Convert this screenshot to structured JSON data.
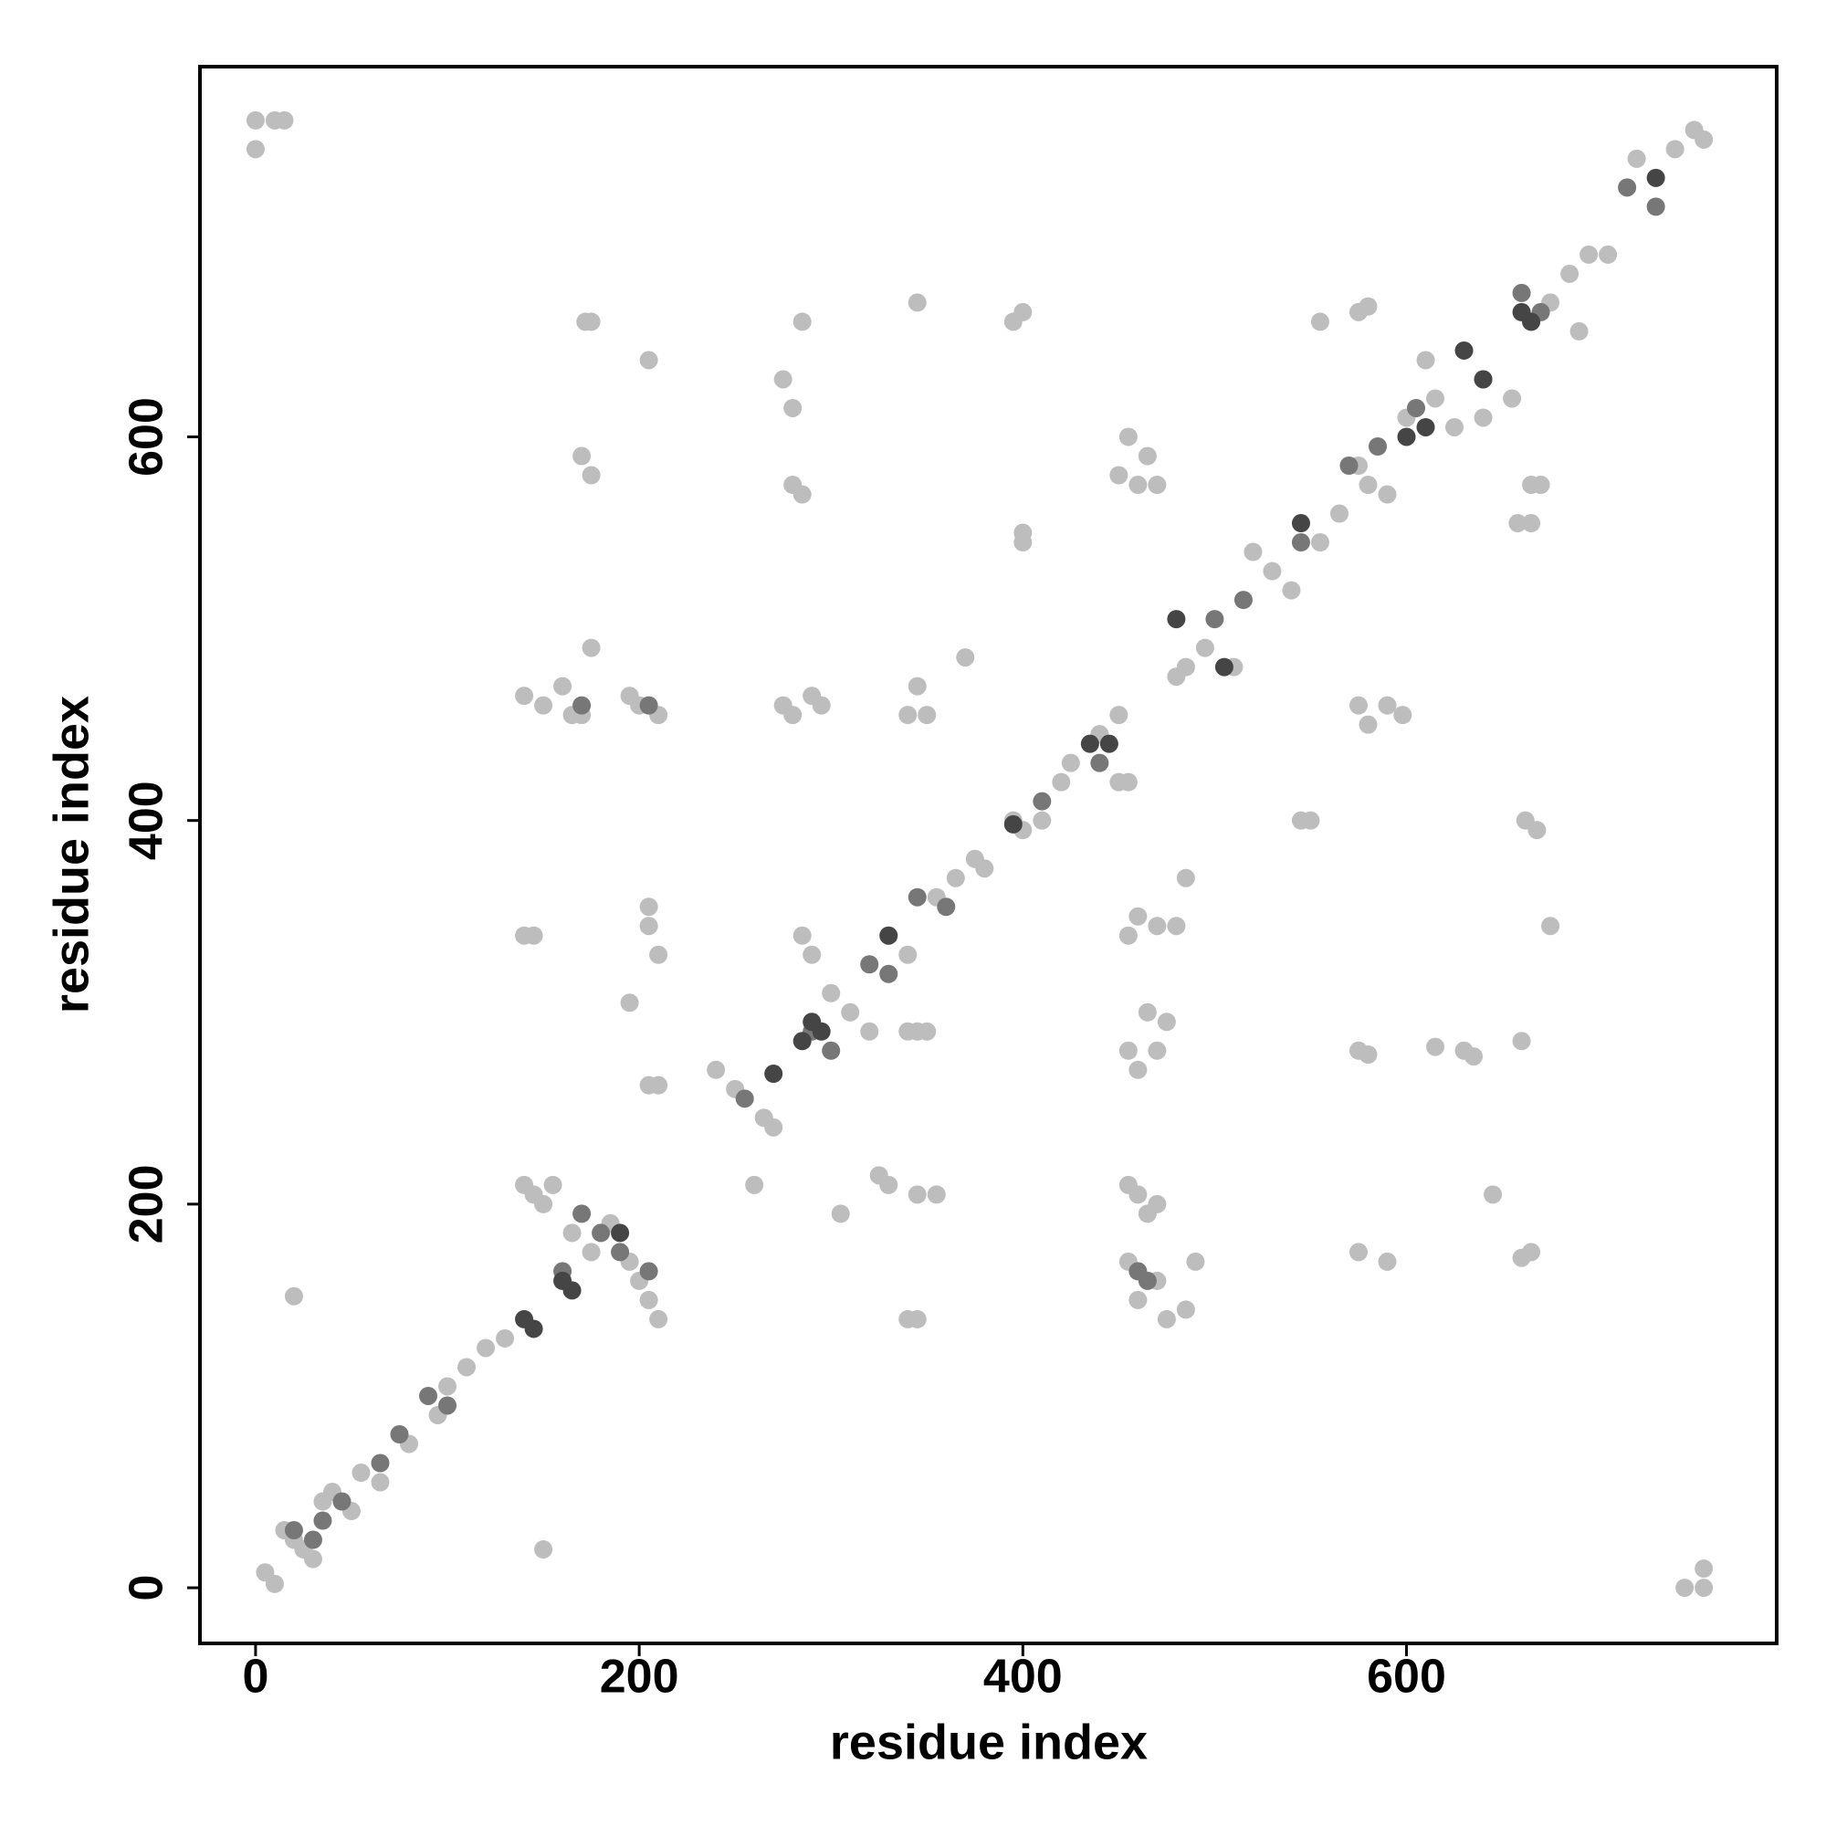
{
  "chart_data": {
    "type": "scatter",
    "xlabel": "residue index",
    "ylabel": "residue index",
    "xlim": [
      -29,
      793
    ],
    "ylim": [
      -29,
      793
    ],
    "xticks": [
      0,
      200,
      400,
      600
    ],
    "yticks": [
      0,
      200,
      400,
      600
    ],
    "series": [
      {
        "color": "#bdbdbd",
        "x": [
          5,
          10,
          15,
          20,
          25,
          30,
          35,
          40,
          50,
          55,
          65,
          80,
          95,
          100,
          110,
          120,
          130,
          140,
          145,
          150,
          155,
          165,
          175,
          185,
          195,
          200,
          205,
          210,
          240,
          250,
          265,
          270,
          285,
          290,
          300,
          310,
          320,
          330,
          340,
          350,
          355,
          365,
          375,
          380,
          395,
          400,
          410,
          420,
          425,
          440,
          450,
          480,
          485,
          495,
          510,
          520,
          530,
          540,
          555,
          565,
          575,
          580,
          590,
          600,
          610,
          615,
          625,
          640,
          655,
          665,
          675,
          685,
          695,
          705,
          720,
          740,
          750,
          755,
          0,
          0,
          10,
          15,
          20,
          150,
          140,
          145,
          175,
          172,
          170,
          175,
          205,
          205,
          210,
          205,
          195,
          205,
          210,
          140,
          150,
          160,
          170,
          175,
          165,
          195,
          200,
          210,
          275,
          280,
          290,
          295,
          275,
          280,
          285,
          280,
          285,
          260,
          305,
          325,
          330,
          345,
          355,
          345,
          340,
          345,
          340,
          345,
          340,
          345,
          350,
          370,
          395,
          400,
          400,
          400,
          450,
          455,
          460,
          465,
          470,
          455,
          460,
          470,
          480,
          485,
          455,
          460,
          465,
          470,
          475,
          455,
          460,
          465,
          470,
          455,
          460,
          470,
          475,
          485,
          490,
          450,
          455,
          545,
          550,
          555,
          575,
          580,
          575,
          580,
          590,
          598,
          575,
          580,
          590,
          575,
          615,
          630,
          635,
          645,
          658,
          665,
          660,
          665,
          660,
          662,
          668,
          665,
          670,
          675,
          745,
          755,
          755,
          690
        ],
        "y": [
          8,
          2,
          30,
          25,
          20,
          15,
          45,
          50,
          40,
          60,
          55,
          75,
          90,
          105,
          115,
          125,
          130,
          210,
          205,
          200,
          210,
          185,
          175,
          190,
          170,
          160,
          150,
          140,
          270,
          260,
          245,
          240,
          340,
          330,
          310,
          300,
          290,
          340,
          330,
          290,
          360,
          370,
          380,
          375,
          400,
          395,
          400,
          420,
          430,
          445,
          455,
          475,
          480,
          490,
          480,
          540,
          530,
          520,
          545,
          560,
          585,
          575,
          570,
          610,
          640,
          620,
          605,
          610,
          620,
          660,
          670,
          685,
          695,
          695,
          745,
          750,
          760,
          755,
          765,
          750,
          765,
          765,
          152,
          20,
          340,
          340,
          660,
          660,
          590,
          580,
          640,
          345,
          330,
          355,
          305,
          262,
          262,
          465,
          460,
          470,
          455,
          490,
          455,
          465,
          460,
          455,
          460,
          455,
          465,
          460,
          630,
          615,
          660,
          575,
          570,
          210,
          195,
          215,
          210,
          205,
          205,
          670,
          290,
          290,
          140,
          140,
          455,
          470,
          455,
          485,
          660,
          665,
          550,
          545,
          580,
          600,
          575,
          590,
          575,
          340,
          350,
          345,
          345,
          370,
          280,
          270,
          300,
          280,
          295,
          210,
          205,
          195,
          200,
          170,
          150,
          160,
          140,
          145,
          170,
          420,
          420,
          400,
          400,
          660,
          665,
          668,
          460,
          450,
          460,
          455,
          280,
          278,
          170,
          175,
          282,
          280,
          277,
          205,
          555,
          555,
          172,
          175,
          285,
          400,
          395,
          575,
          575,
          345,
          0,
          10,
          0,
          655
        ]
      },
      {
        "color": "#777777",
        "x": [
          20,
          30,
          35,
          45,
          65,
          75,
          90,
          100,
          160,
          170,
          180,
          190,
          205,
          255,
          290,
          300,
          320,
          330,
          345,
          360,
          410,
          440,
          460,
          465,
          500,
          515,
          545,
          570,
          585,
          605,
          640,
          660,
          670,
          715,
          730,
          170,
          205
        ],
        "y": [
          30,
          25,
          35,
          45,
          65,
          80,
          100,
          95,
          165,
          195,
          185,
          175,
          165,
          255,
          290,
          280,
          325,
          320,
          360,
          355,
          410,
          430,
          165,
          160,
          505,
          515,
          545,
          585,
          595,
          615,
          630,
          675,
          665,
          730,
          720,
          460,
          460
        ]
      },
      {
        "color": "#454545",
        "x": [
          140,
          145,
          160,
          165,
          190,
          270,
          285,
          290,
          295,
          330,
          395,
          435,
          445,
          480,
          505,
          545,
          600,
          610,
          630,
          640,
          660,
          665,
          730
        ],
        "y": [
          140,
          135,
          160,
          155,
          185,
          268,
          285,
          295,
          290,
          340,
          398,
          440,
          440,
          505,
          480,
          555,
          600,
          605,
          645,
          630,
          665,
          660,
          735
        ]
      }
    ]
  }
}
